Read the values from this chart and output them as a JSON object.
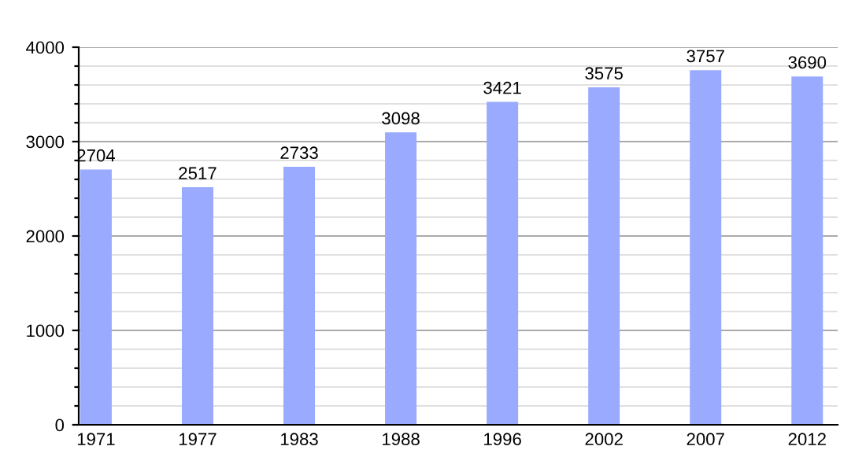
{
  "chart_data": {
    "type": "bar",
    "categories": [
      "1971",
      "1977",
      "1983",
      "1988",
      "1996",
      "2002",
      "2007",
      "2012"
    ],
    "values": [
      2704,
      2517,
      2733,
      3098,
      3421,
      3575,
      3757,
      3690
    ],
    "color": "#99aaff",
    "data_labels": true,
    "ylim": [
      0,
      4000
    ],
    "yticks": [
      0,
      {
        "value": 200,
        "label": null
      },
      {
        "value": 400,
        "label": null
      },
      {
        "value": 600,
        "label": null
      },
      {
        "value": 800,
        "label": null
      },
      1000,
      {
        "value": 1200,
        "label": null
      },
      {
        "value": 1400,
        "label": null
      },
      {
        "value": 1600,
        "label": null
      },
      {
        "value": 1800,
        "label": null
      },
      2000,
      {
        "value": 2200,
        "label": null
      },
      {
        "value": 2400,
        "label": null
      },
      {
        "value": 2600,
        "label": null
      },
      {
        "value": 2800,
        "label": null
      },
      3000,
      {
        "value": 3200,
        "label": null
      },
      {
        "value": 3400,
        "label": null
      },
      {
        "value": 3600,
        "label": null
      },
      {
        "value": 3800,
        "label": null
      },
      4000
    ],
    "grid": "y"
  }
}
